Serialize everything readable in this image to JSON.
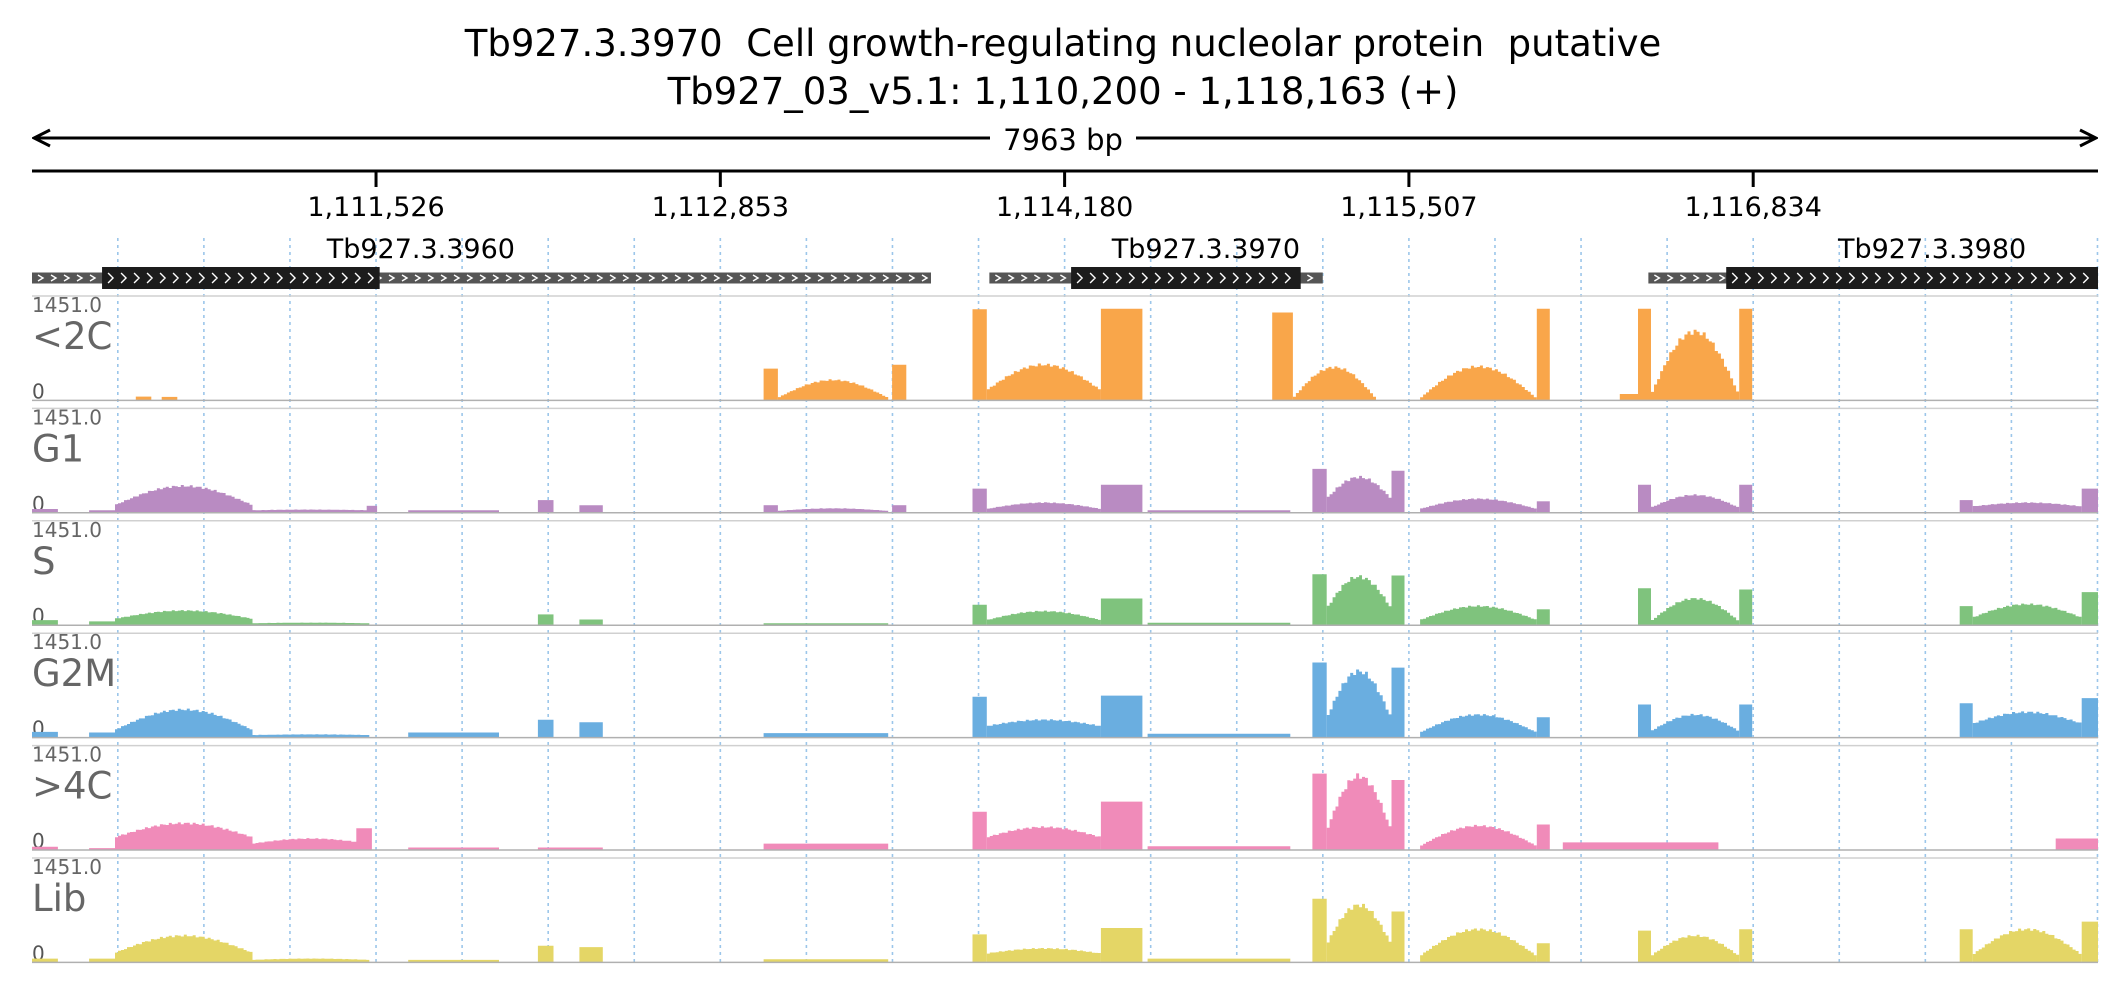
{
  "chart_data": {
    "type": "area",
    "title": "Tb927.3.3970  Cell growth-regulating nucleolar protein  putative",
    "subtitle": "Tb927_03_v5.1: 1,110,200 - 1,118,163 (+)",
    "span_label": "7963 bp",
    "xlim": [
      1110200,
      1118163
    ],
    "x_ticks": [
      {
        "value": 1111526,
        "label": "1,111,526"
      },
      {
        "value": 1112853,
        "label": "1,112,853"
      },
      {
        "value": 1114180,
        "label": "1,114,180"
      },
      {
        "value": 1115507,
        "label": "1,115,507"
      },
      {
        "value": 1116834,
        "label": "1,116,834"
      }
    ],
    "genes": [
      {
        "name": "Tb927.3.3960",
        "utr_start": 1110200,
        "cds_start": 1110470,
        "cds_end": 1111540,
        "utr_end": 1113665,
        "strand": "+"
      },
      {
        "name": "Tb927.3.3970",
        "utr_start": 1113890,
        "cds_start": 1114205,
        "cds_end": 1115090,
        "utr_end": 1115175,
        "strand": "+"
      },
      {
        "name": "Tb927.3.3980",
        "utr_start": 1116430,
        "cds_start": 1116730,
        "cds_end": 1118163,
        "strand": "+"
      }
    ],
    "track_ymax_label": "1451.0",
    "track_y0_label": "0",
    "ylim": [
      0,
      1451
    ],
    "series": [
      {
        "name": "<2C",
        "color": "#f9a64a",
        "segments": [
          {
            "start": 1110600,
            "end": 1110660,
            "v": 60
          },
          {
            "start": 1110700,
            "end": 1110760,
            "v": 55
          },
          {
            "start": 1113020,
            "end": 1113075,
            "v": 500
          },
          {
            "start": 1113075,
            "end": 1113500,
            "peak": 320,
            "edge": 40,
            "shape": "arch"
          },
          {
            "start": 1113515,
            "end": 1113570,
            "v": 560
          },
          {
            "start": 1113825,
            "end": 1113880,
            "v": 1430
          },
          {
            "start": 1113880,
            "end": 1114320,
            "peak": 560,
            "edge": 160,
            "shape": "arch"
          },
          {
            "start": 1114320,
            "end": 1114480,
            "v": 1440
          },
          {
            "start": 1114980,
            "end": 1115060,
            "v": 1380
          },
          {
            "start": 1115060,
            "end": 1115380,
            "peak": 520,
            "edge": 30,
            "shape": "arch"
          },
          {
            "start": 1115550,
            "end": 1116000,
            "peak": 530,
            "edge": 30,
            "shape": "arch"
          },
          {
            "start": 1116000,
            "end": 1116050,
            "v": 1440
          },
          {
            "start": 1116320,
            "end": 1116390,
            "v": 100
          },
          {
            "start": 1116390,
            "end": 1116440,
            "v": 1440
          },
          {
            "start": 1116440,
            "end": 1116780,
            "peak": 1080,
            "edge": 80,
            "shape": "arch"
          },
          {
            "start": 1116780,
            "end": 1116830,
            "v": 1440
          }
        ]
      },
      {
        "name": "G1",
        "color": "#b98bc2",
        "segments": [
          {
            "start": 1110200,
            "end": 1110300,
            "v": 60
          },
          {
            "start": 1110420,
            "end": 1110520,
            "v": 40
          },
          {
            "start": 1110520,
            "end": 1111050,
            "peak": 420,
            "edge": 120,
            "shape": "arch"
          },
          {
            "start": 1111050,
            "end": 1111500,
            "peak": 50,
            "edge": 40,
            "shape": "arch"
          },
          {
            "start": 1111490,
            "end": 1111530,
            "v": 110
          },
          {
            "start": 1111650,
            "end": 1112000,
            "v": 40
          },
          {
            "start": 1112150,
            "end": 1112210,
            "v": 200
          },
          {
            "start": 1112310,
            "end": 1112400,
            "v": 120
          },
          {
            "start": 1113020,
            "end": 1113075,
            "v": 120
          },
          {
            "start": 1113075,
            "end": 1113500,
            "peak": 70,
            "edge": 30,
            "shape": "arch"
          },
          {
            "start": 1113515,
            "end": 1113570,
            "v": 120
          },
          {
            "start": 1113825,
            "end": 1113880,
            "v": 380
          },
          {
            "start": 1113880,
            "end": 1114320,
            "peak": 160,
            "edge": 60,
            "shape": "arch"
          },
          {
            "start": 1114320,
            "end": 1114480,
            "v": 440
          },
          {
            "start": 1114500,
            "end": 1115050,
            "v": 40
          },
          {
            "start": 1115135,
            "end": 1115190,
            "v": 690
          },
          {
            "start": 1115190,
            "end": 1115440,
            "peak": 560,
            "edge": 220,
            "shape": "arch"
          },
          {
            "start": 1115440,
            "end": 1115490,
            "v": 660
          },
          {
            "start": 1115550,
            "end": 1116000,
            "peak": 220,
            "edge": 60,
            "shape": "arch"
          },
          {
            "start": 1116000,
            "end": 1116050,
            "v": 180
          },
          {
            "start": 1116390,
            "end": 1116440,
            "v": 440
          },
          {
            "start": 1116440,
            "end": 1116780,
            "peak": 280,
            "edge": 80,
            "shape": "arch"
          },
          {
            "start": 1116780,
            "end": 1116830,
            "v": 440
          },
          {
            "start": 1117630,
            "end": 1117680,
            "v": 200
          },
          {
            "start": 1117680,
            "end": 1118100,
            "peak": 160,
            "edge": 100,
            "shape": "arch"
          },
          {
            "start": 1118100,
            "end": 1118163,
            "v": 380
          }
        ]
      },
      {
        "name": "S",
        "color": "#7fc37d",
        "segments": [
          {
            "start": 1110200,
            "end": 1110300,
            "v": 80
          },
          {
            "start": 1110420,
            "end": 1110520,
            "v": 60
          },
          {
            "start": 1110520,
            "end": 1111050,
            "peak": 230,
            "edge": 100,
            "shape": "arch"
          },
          {
            "start": 1111050,
            "end": 1111500,
            "peak": 40,
            "edge": 30,
            "shape": "arch"
          },
          {
            "start": 1112150,
            "end": 1112210,
            "v": 170
          },
          {
            "start": 1112310,
            "end": 1112400,
            "v": 90
          },
          {
            "start": 1113020,
            "end": 1113500,
            "v": 30
          },
          {
            "start": 1113825,
            "end": 1113880,
            "v": 320
          },
          {
            "start": 1113880,
            "end": 1114320,
            "peak": 220,
            "edge": 80,
            "shape": "arch"
          },
          {
            "start": 1114320,
            "end": 1114480,
            "v": 420
          },
          {
            "start": 1114500,
            "end": 1115050,
            "v": 40
          },
          {
            "start": 1115135,
            "end": 1115190,
            "v": 800
          },
          {
            "start": 1115190,
            "end": 1115440,
            "peak": 760,
            "edge": 260,
            "shape": "arch"
          },
          {
            "start": 1115440,
            "end": 1115490,
            "v": 780
          },
          {
            "start": 1115550,
            "end": 1116000,
            "peak": 300,
            "edge": 80,
            "shape": "arch"
          },
          {
            "start": 1116000,
            "end": 1116050,
            "v": 250
          },
          {
            "start": 1116390,
            "end": 1116440,
            "v": 580
          },
          {
            "start": 1116440,
            "end": 1116780,
            "peak": 420,
            "edge": 60,
            "shape": "arch"
          },
          {
            "start": 1116780,
            "end": 1116830,
            "v": 560
          },
          {
            "start": 1117630,
            "end": 1117680,
            "v": 300
          },
          {
            "start": 1117680,
            "end": 1118100,
            "peak": 330,
            "edge": 120,
            "shape": "arch"
          },
          {
            "start": 1118100,
            "end": 1118163,
            "v": 520
          }
        ]
      },
      {
        "name": "G2M",
        "color": "#6aaee0",
        "segments": [
          {
            "start": 1110200,
            "end": 1110300,
            "v": 90
          },
          {
            "start": 1110420,
            "end": 1110520,
            "v": 80
          },
          {
            "start": 1110520,
            "end": 1111050,
            "peak": 440,
            "edge": 120,
            "shape": "arch"
          },
          {
            "start": 1111050,
            "end": 1111500,
            "peak": 50,
            "edge": 40,
            "shape": "arch"
          },
          {
            "start": 1111650,
            "end": 1112000,
            "v": 80
          },
          {
            "start": 1112150,
            "end": 1112210,
            "v": 280
          },
          {
            "start": 1112310,
            "end": 1112400,
            "v": 240
          },
          {
            "start": 1113020,
            "end": 1113500,
            "v": 70
          },
          {
            "start": 1113825,
            "end": 1113880,
            "v": 640
          },
          {
            "start": 1113880,
            "end": 1114320,
            "peak": 280,
            "edge": 180,
            "shape": "arch"
          },
          {
            "start": 1114320,
            "end": 1114480,
            "v": 660
          },
          {
            "start": 1114500,
            "end": 1115050,
            "v": 60
          },
          {
            "start": 1115135,
            "end": 1115190,
            "v": 1180
          },
          {
            "start": 1115190,
            "end": 1115440,
            "peak": 1040,
            "edge": 300,
            "shape": "arch"
          },
          {
            "start": 1115440,
            "end": 1115490,
            "v": 1100
          },
          {
            "start": 1115550,
            "end": 1116000,
            "peak": 360,
            "edge": 80,
            "shape": "arch"
          },
          {
            "start": 1116000,
            "end": 1116050,
            "v": 320
          },
          {
            "start": 1116390,
            "end": 1116440,
            "v": 520
          },
          {
            "start": 1116440,
            "end": 1116780,
            "peak": 360,
            "edge": 100,
            "shape": "arch"
          },
          {
            "start": 1116780,
            "end": 1116830,
            "v": 520
          },
          {
            "start": 1117630,
            "end": 1117680,
            "v": 540
          },
          {
            "start": 1117680,
            "end": 1118100,
            "peak": 400,
            "edge": 220,
            "shape": "arch"
          },
          {
            "start": 1118100,
            "end": 1118163,
            "v": 620
          }
        ]
      },
      {
        "name": ">4C",
        "color": "#f08bb9",
        "segments": [
          {
            "start": 1110200,
            "end": 1110300,
            "v": 50
          },
          {
            "start": 1110420,
            "end": 1110520,
            "v": 30
          },
          {
            "start": 1110520,
            "end": 1111050,
            "peak": 420,
            "edge": 200,
            "shape": "arch"
          },
          {
            "start": 1111050,
            "end": 1111500,
            "peak": 180,
            "edge": 100,
            "shape": "arch"
          },
          {
            "start": 1111450,
            "end": 1111510,
            "v": 340
          },
          {
            "start": 1111650,
            "end": 1112000,
            "v": 40
          },
          {
            "start": 1112150,
            "end": 1112400,
            "v": 40
          },
          {
            "start": 1113020,
            "end": 1113500,
            "v": 100
          },
          {
            "start": 1113825,
            "end": 1113880,
            "v": 600
          },
          {
            "start": 1113880,
            "end": 1114320,
            "peak": 360,
            "edge": 200,
            "shape": "arch"
          },
          {
            "start": 1114320,
            "end": 1114480,
            "v": 760
          },
          {
            "start": 1114500,
            "end": 1115050,
            "v": 60
          },
          {
            "start": 1115135,
            "end": 1115190,
            "v": 1200
          },
          {
            "start": 1115190,
            "end": 1115440,
            "peak": 1160,
            "edge": 300,
            "shape": "arch"
          },
          {
            "start": 1115440,
            "end": 1115490,
            "v": 1100
          },
          {
            "start": 1115550,
            "end": 1116000,
            "peak": 380,
            "edge": 60,
            "shape": "arch"
          },
          {
            "start": 1116000,
            "end": 1116050,
            "v": 400
          },
          {
            "start": 1116100,
            "end": 1116700,
            "v": 120
          },
          {
            "start": 1118000,
            "end": 1118163,
            "v": 180
          }
        ]
      },
      {
        "name": "Lib",
        "color": "#e4d666",
        "segments": [
          {
            "start": 1110200,
            "end": 1110300,
            "v": 60
          },
          {
            "start": 1110420,
            "end": 1110520,
            "v": 60
          },
          {
            "start": 1110520,
            "end": 1111050,
            "peak": 420,
            "edge": 150,
            "shape": "arch"
          },
          {
            "start": 1111050,
            "end": 1111500,
            "peak": 60,
            "edge": 40,
            "shape": "arch"
          },
          {
            "start": 1111650,
            "end": 1112000,
            "v": 40
          },
          {
            "start": 1112150,
            "end": 1112210,
            "v": 260
          },
          {
            "start": 1112310,
            "end": 1112400,
            "v": 240
          },
          {
            "start": 1113020,
            "end": 1113500,
            "v": 50
          },
          {
            "start": 1113825,
            "end": 1113880,
            "v": 440
          },
          {
            "start": 1113880,
            "end": 1114320,
            "peak": 220,
            "edge": 140,
            "shape": "arch"
          },
          {
            "start": 1114320,
            "end": 1114480,
            "v": 540
          },
          {
            "start": 1114500,
            "end": 1115050,
            "v": 60
          },
          {
            "start": 1115135,
            "end": 1115190,
            "v": 1000
          },
          {
            "start": 1115190,
            "end": 1115440,
            "peak": 900,
            "edge": 280,
            "shape": "arch"
          },
          {
            "start": 1115440,
            "end": 1115490,
            "v": 800
          },
          {
            "start": 1115550,
            "end": 1116000,
            "peak": 520,
            "edge": 100,
            "shape": "arch"
          },
          {
            "start": 1116000,
            "end": 1116050,
            "v": 300
          },
          {
            "start": 1116390,
            "end": 1116440,
            "v": 500
          },
          {
            "start": 1116440,
            "end": 1116780,
            "peak": 420,
            "edge": 100,
            "shape": "arch"
          },
          {
            "start": 1116780,
            "end": 1116830,
            "v": 520
          },
          {
            "start": 1117630,
            "end": 1117680,
            "v": 520
          },
          {
            "start": 1117680,
            "end": 1118100,
            "peak": 520,
            "edge": 120,
            "shape": "arch"
          },
          {
            "start": 1118100,
            "end": 1118163,
            "v": 640
          }
        ]
      }
    ]
  }
}
